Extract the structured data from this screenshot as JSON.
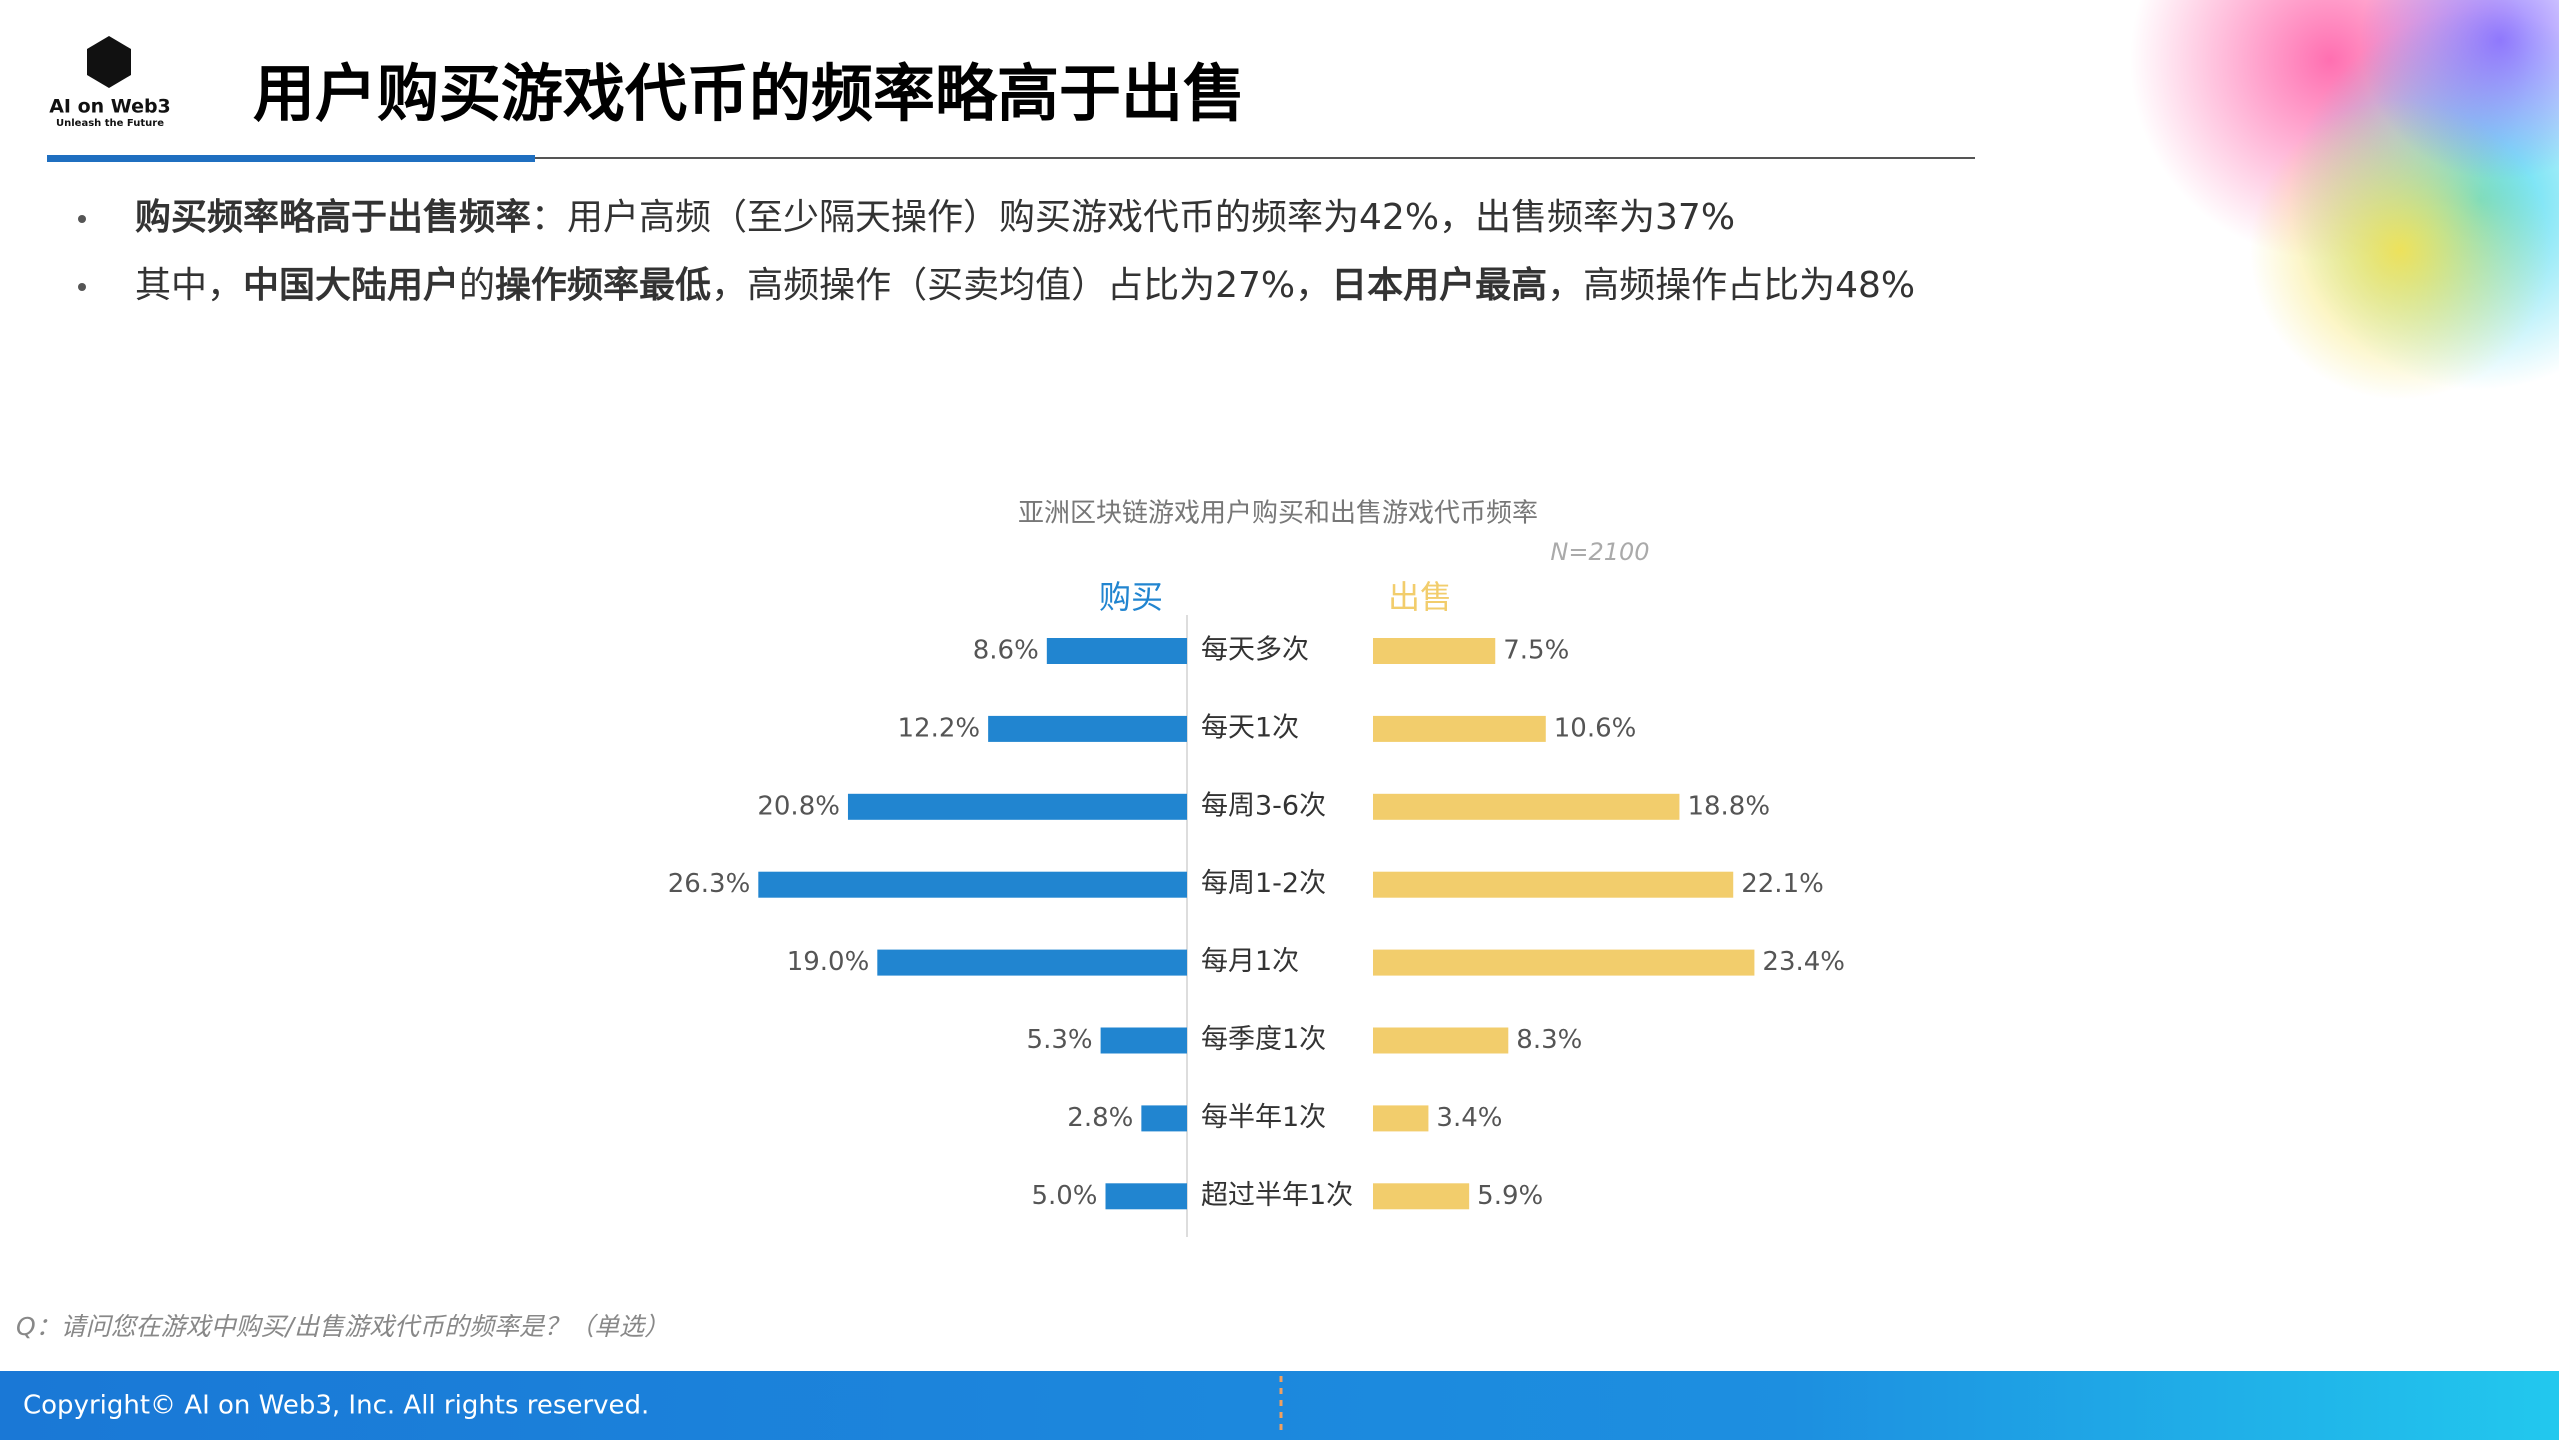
{
  "header": {
    "logo_title": "AI on Web3",
    "logo_tagline": "Unleash the Future",
    "title": "用户购买游戏代币的频率略高于出售"
  },
  "bullets": [
    [
      {
        "text": "购买频率略高于出售频率",
        "bold": true
      },
      {
        "text": "：用户高频（至少隔天操作）购买游戏代币的频率为42%，出售频率为37%",
        "bold": false
      }
    ],
    [
      {
        "text": "其中，",
        "bold": false
      },
      {
        "text": "中国大陆用户",
        "bold": true
      },
      {
        "text": "的",
        "bold": false
      },
      {
        "text": "操作频率最低",
        "bold": true
      },
      {
        "text": "，高频操作（买卖均值）占比为27%，",
        "bold": false
      },
      {
        "text": "日本用户最高",
        "bold": true
      },
      {
        "text": "，高频操作占比为48%",
        "bold": false
      }
    ]
  ],
  "chart_data": {
    "type": "butterfly",
    "title": "亚洲区块链游戏用户购买和出售游戏代币频率",
    "subtitle": "N=2100",
    "categories": [
      "每天多次",
      "每天1次",
      "每周3-6次",
      "每周1-2次",
      "每月1次",
      "每季度1次",
      "每半年1次",
      "超过半年1次"
    ],
    "series": [
      {
        "name": "购买",
        "color": "#2185d0",
        "values": [
          8.6,
          12.2,
          20.8,
          26.3,
          19.0,
          5.3,
          2.8,
          5.0
        ],
        "value_labels": [
          "8.6%",
          "12.2%",
          "20.8%",
          "26.3%",
          "19.0%",
          "5.3%",
          "2.8%",
          "5.0%"
        ]
      },
      {
        "name": "出售",
        "color": "#f2cd6c",
        "values": [
          7.5,
          10.6,
          18.8,
          22.1,
          23.4,
          8.3,
          3.4,
          5.9
        ],
        "value_labels": [
          "7.5%",
          "10.6%",
          "18.8%",
          "22.1%",
          "23.4%",
          "8.3%",
          "3.4%",
          "5.9%"
        ]
      }
    ]
  },
  "question": "Q：请问您在游戏中购买/出售游戏代币的频率是？（单选）",
  "footer": "Copyright© AI on Web3, Inc. All rights reserved."
}
